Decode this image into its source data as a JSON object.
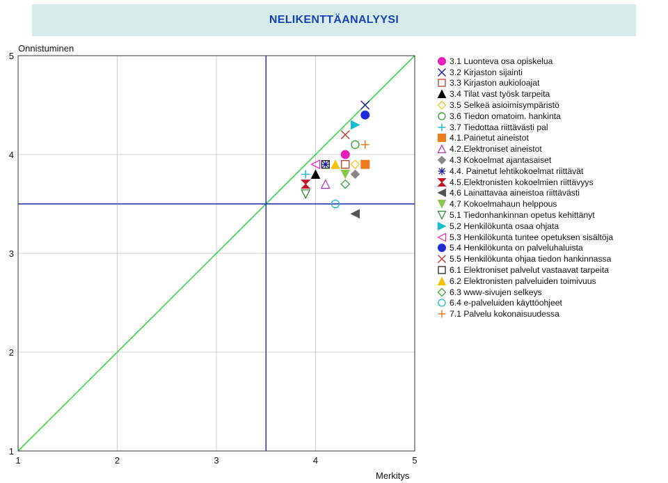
{
  "header": {
    "title": "NELIKENTTÄANALYYSI"
  },
  "chart_data": {
    "type": "scatter",
    "title": "NELIKENTTÄANALYYSI",
    "xlabel": "Merkitys",
    "ylabel": "Onnistuminen",
    "xlim": [
      1,
      5
    ],
    "ylim": [
      1,
      5
    ],
    "x_ticks": [
      "1",
      "2",
      "3",
      "4",
      "5"
    ],
    "y_ticks": [
      "1",
      "2",
      "3",
      "4",
      "5"
    ],
    "grid": true,
    "reference_lines": {
      "diagonal": true,
      "vertical_x": 3.5,
      "horizontal_y": 3.5
    },
    "legend_position": "right",
    "series": [
      {
        "name": "3.1 Luonteva osa opiskelua",
        "marker": "circle-filled",
        "color": "#e81fb8",
        "x": 4.3,
        "y": 4.0
      },
      {
        "name": "3.2 Kirjaston sijainti",
        "marker": "x",
        "color": "#1a1aa0",
        "x": 4.5,
        "y": 4.5
      },
      {
        "name": "3.3 Kirjaston aukioloajat",
        "marker": "square-open",
        "color": "#c0392b",
        "x": 4.3,
        "y": 3.9
      },
      {
        "name": "3.4 Tilat vast työsk tarpeita",
        "marker": "triangle-filled",
        "color": "#000000",
        "x": 4.0,
        "y": 3.8
      },
      {
        "name": "3.5 Selkeä asioimisympäristö",
        "marker": "diamond-open",
        "color": "#f0c419",
        "x": 4.4,
        "y": 3.9
      },
      {
        "name": "3.6 Tiedon omatoim. hankinta",
        "marker": "circle-open",
        "color": "#2ca02c",
        "x": 4.4,
        "y": 4.1
      },
      {
        "name": "3.7 Tiedottaa riittävästi pal",
        "marker": "plus",
        "color": "#17becf",
        "x": 3.9,
        "y": 3.8
      },
      {
        "name": "4.1.Painetut aineistot",
        "marker": "square-filled",
        "color": "#f07b1d",
        "x": 4.5,
        "y": 3.9
      },
      {
        "name": "4.2.Elektroniset aineistot",
        "marker": "triangle-open",
        "color": "#b030b0",
        "x": 4.1,
        "y": 3.7
      },
      {
        "name": "4.3 Kokoelmat ajantasaiset",
        "marker": "diamond-filled",
        "color": "#888888",
        "x": 4.4,
        "y": 3.8
      },
      {
        "name": "4.4. Painetut lehtikokoelmat riittävät",
        "marker": "asterisk",
        "color": "#1a1aa0",
        "x": 4.1,
        "y": 3.9
      },
      {
        "name": "4.5.Elektronisten kokoelmien riittävyys",
        "marker": "hourglass",
        "color": "#c0182a",
        "x": 3.9,
        "y": 3.7
      },
      {
        "name": "4.6 Lainattavaa aineistoa riittävästi",
        "marker": "triangle-left-filled",
        "color": "#555555",
        "x": 4.4,
        "y": 3.4
      },
      {
        "name": "4.7 Kokoelmahaun helppous",
        "marker": "triangle-down-filled",
        "color": "#8bc34a",
        "x": 4.3,
        "y": 3.8
      },
      {
        "name": "5.1 Tiedonhankinnan opetus kehittänyt",
        "marker": "triangle-down-open",
        "color": "#2e7d32",
        "x": 3.9,
        "y": 3.6
      },
      {
        "name": "5.2 Henkilökunta osaa ohjata",
        "marker": "triangle-right-filled",
        "color": "#17becf",
        "x": 4.4,
        "y": 4.3
      },
      {
        "name": "5.3 Henkilökunta tuntee opetuksen sisältöja",
        "marker": "triangle-left-open",
        "color": "#e81fb8",
        "x": 4.0,
        "y": 3.9
      },
      {
        "name": "5.4 Henkilökunta on palveluhaluista",
        "marker": "circle-filled",
        "color": "#1f2ad8",
        "x": 4.5,
        "y": 4.4
      },
      {
        "name": "5.5 Henkilökunta ohjaa tiedon hankinnassa",
        "marker": "x",
        "color": "#c0392b",
        "x": 4.3,
        "y": 4.2
      },
      {
        "name": "6.1 Elektroniset palvelut vastaavat tarpeita",
        "marker": "square-open",
        "color": "#222222",
        "x": 4.1,
        "y": 3.9
      },
      {
        "name": "6.2 Elektronisten palveluiden toimivuus",
        "marker": "triangle-filled",
        "color": "#f5c400",
        "x": 4.2,
        "y": 3.9
      },
      {
        "name": "6.3 www-sivujen selkeys",
        "marker": "diamond-open",
        "color": "#2ca02c",
        "x": 4.3,
        "y": 3.7
      },
      {
        "name": "6.4 e-palveluiden käyttöohjeet",
        "marker": "circle-open",
        "color": "#17becf",
        "x": 4.2,
        "y": 3.5
      },
      {
        "name": "7.1 Palvelu kokonaisuudessa",
        "marker": "plus",
        "color": "#f07b1d",
        "x": 4.5,
        "y": 4.1
      }
    ]
  }
}
